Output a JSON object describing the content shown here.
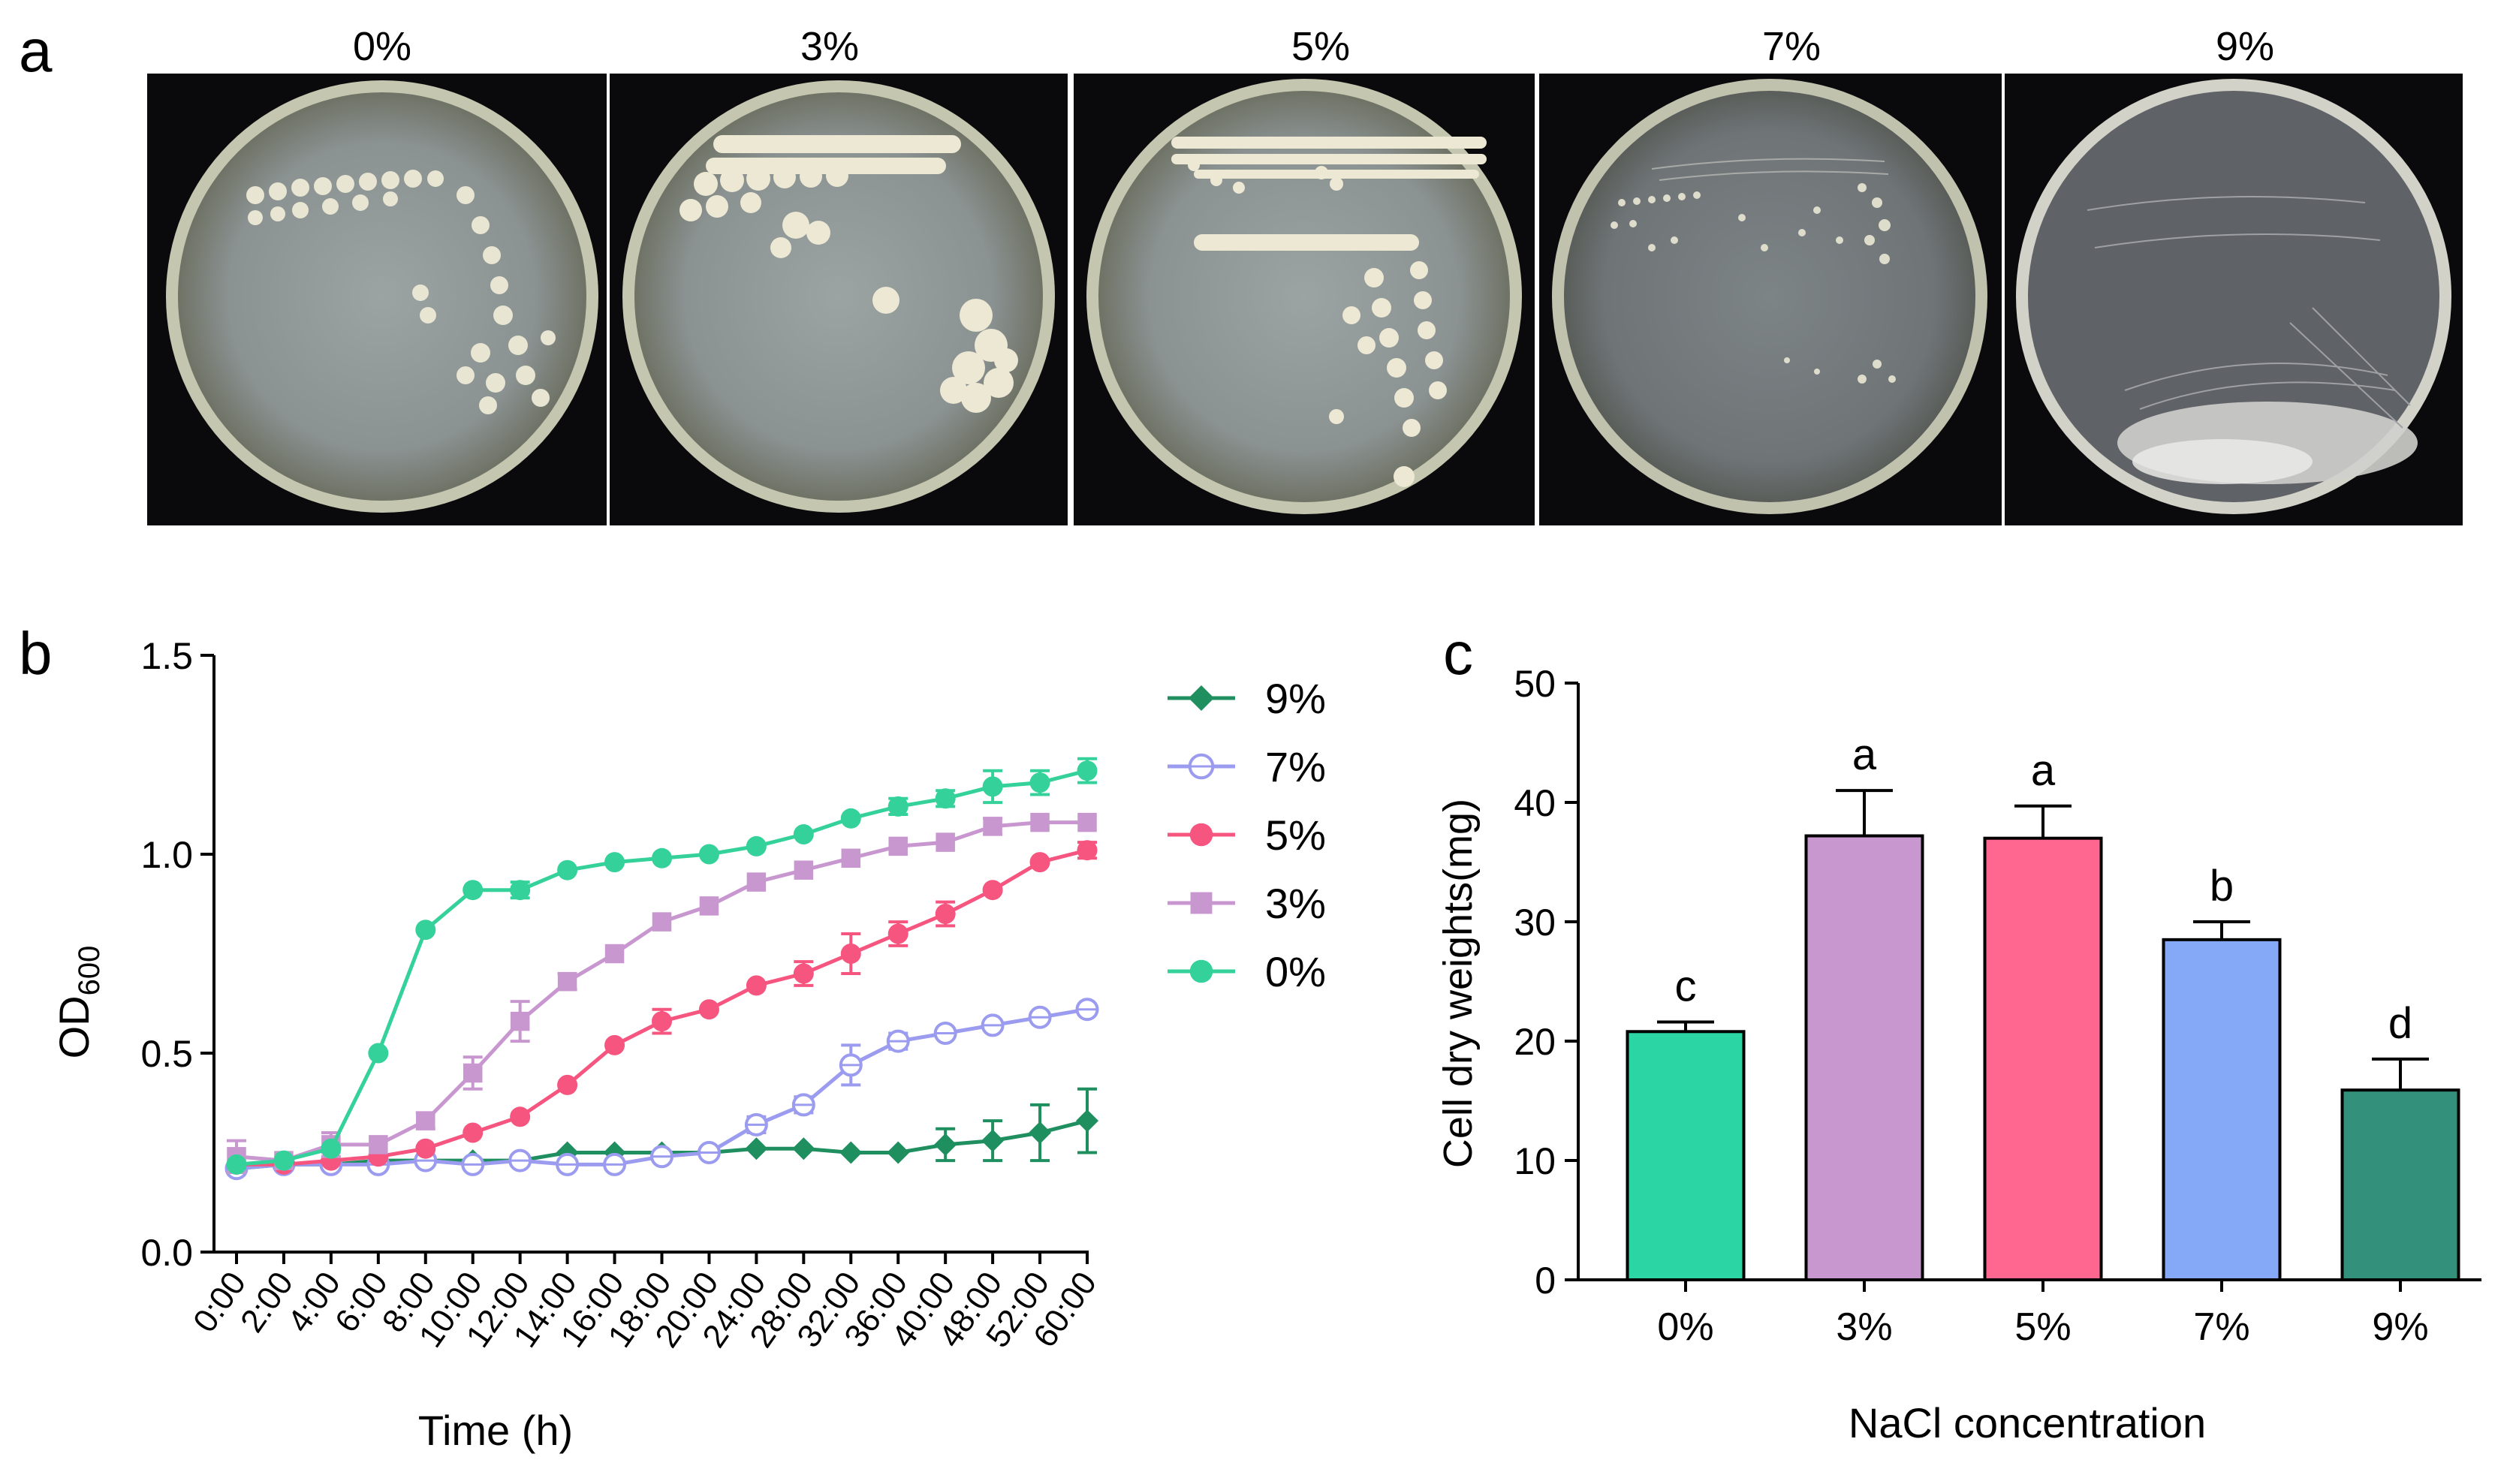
{
  "panel_labels": {
    "a": "a",
    "b": "b",
    "c": "c"
  },
  "plates": [
    {
      "label": "0%"
    },
    {
      "label": "3%"
    },
    {
      "label": "5%"
    },
    {
      "label": "7%"
    },
    {
      "label": "9%"
    }
  ],
  "colors": {
    "s9": "#1f8f5f",
    "s7": "#9b9bef",
    "s5": "#f5557f",
    "s3": "#c897d0",
    "s0": "#34d29a",
    "bar0": "#2bd6a4",
    "bar3": "#c897cf",
    "bar5": "#ff6690",
    "bar7": "#86a9f7",
    "bar9": "#33907a"
  },
  "chart_data": [
    {
      "type": "line",
      "panel": "b",
      "xlabel": "Time (h)",
      "ylabel": "OD",
      "ylabel_sub": "600",
      "ylim": [
        0,
        1.5
      ],
      "yticks": [
        "0.0",
        "0.5",
        "1.0",
        "1.5"
      ],
      "legend_position": "right",
      "x": [
        "0:00",
        "2:00",
        "4:00",
        "6:00",
        "8:00",
        "10:00",
        "12:00",
        "14:00",
        "16:00",
        "18:00",
        "20:00",
        "24:00",
        "28:00",
        "32:00",
        "36:00",
        "40:00",
        "48:00",
        "52:00",
        "60:00"
      ],
      "series": [
        {
          "name": "9%",
          "marker": "diamond",
          "color": "#1f8f5f",
          "values": [
            0.21,
            0.22,
            0.22,
            0.23,
            0.23,
            0.23,
            0.23,
            0.25,
            0.25,
            0.25,
            0.25,
            0.26,
            0.26,
            0.25,
            0.25,
            0.27,
            0.28,
            0.3,
            0.33
          ],
          "errors": [
            0.01,
            0.01,
            0.01,
            0.01,
            0.01,
            0.01,
            0.01,
            0.01,
            0.01,
            0.01,
            0.01,
            0.01,
            0.01,
            0.01,
            0.01,
            0.04,
            0.05,
            0.07,
            0.08
          ]
        },
        {
          "name": "7%",
          "marker": "circle-open",
          "color": "#9b9bef",
          "values": [
            0.21,
            0.22,
            0.22,
            0.22,
            0.23,
            0.22,
            0.23,
            0.22,
            0.22,
            0.24,
            0.25,
            0.32,
            0.37,
            0.47,
            0.53,
            0.55,
            0.57,
            0.59,
            0.61
          ],
          "errors": [
            0.01,
            0.01,
            0.01,
            0.01,
            0.01,
            0.01,
            0.01,
            0.01,
            0.01,
            0.01,
            0.01,
            0.02,
            0.02,
            0.05,
            0.02,
            0.01,
            0.01,
            0.01,
            0.01
          ]
        },
        {
          "name": "5%",
          "marker": "circle",
          "color": "#f5557f",
          "values": [
            0.22,
            0.22,
            0.23,
            0.24,
            0.26,
            0.3,
            0.34,
            0.42,
            0.52,
            0.58,
            0.61,
            0.67,
            0.7,
            0.75,
            0.8,
            0.85,
            0.91,
            0.98,
            1.01
          ],
          "errors": [
            0.01,
            0.01,
            0.01,
            0.01,
            0.01,
            0.01,
            0.01,
            0.01,
            0.01,
            0.03,
            0.01,
            0.01,
            0.03,
            0.05,
            0.03,
            0.03,
            0.01,
            0.01,
            0.02
          ]
        },
        {
          "name": "3%",
          "marker": "square",
          "color": "#c897d0",
          "values": [
            0.24,
            0.23,
            0.27,
            0.27,
            0.33,
            0.45,
            0.58,
            0.68,
            0.75,
            0.83,
            0.87,
            0.93,
            0.96,
            0.99,
            1.02,
            1.03,
            1.07,
            1.08,
            1.08
          ],
          "errors": [
            0.04,
            0.01,
            0.03,
            0.01,
            0.02,
            0.04,
            0.05,
            0.02,
            0.01,
            0.01,
            0.01,
            0.01,
            0.01,
            0.01,
            0.01,
            0.01,
            0.02,
            0.01,
            0.01
          ]
        },
        {
          "name": "0%",
          "marker": "circle",
          "color": "#34d29a",
          "values": [
            0.22,
            0.23,
            0.26,
            0.5,
            0.81,
            0.91,
            0.91,
            0.96,
            0.98,
            0.99,
            1.0,
            1.02,
            1.05,
            1.09,
            1.12,
            1.14,
            1.17,
            1.18,
            1.21
          ],
          "errors": [
            0.01,
            0.01,
            0.01,
            0.01,
            0.01,
            0.01,
            0.02,
            0.01,
            0.01,
            0.01,
            0.01,
            0.01,
            0.01,
            0.01,
            0.02,
            0.02,
            0.04,
            0.03,
            0.03
          ]
        }
      ]
    },
    {
      "type": "bar",
      "panel": "c",
      "xlabel": "NaCl concentration",
      "ylabel": "Cell dry weights(mg)",
      "ylim": [
        0,
        50
      ],
      "yticks": [
        "0",
        "10",
        "20",
        "30",
        "40",
        "50"
      ],
      "categories": [
        "0%",
        "3%",
        "5%",
        "7%",
        "9%"
      ],
      "values": [
        20.8,
        37.2,
        37.0,
        28.5,
        15.9
      ],
      "errors": [
        0.8,
        3.8,
        2.7,
        1.5,
        2.6
      ],
      "letters": [
        "c",
        "a",
        "a",
        "b",
        "d"
      ]
    }
  ]
}
